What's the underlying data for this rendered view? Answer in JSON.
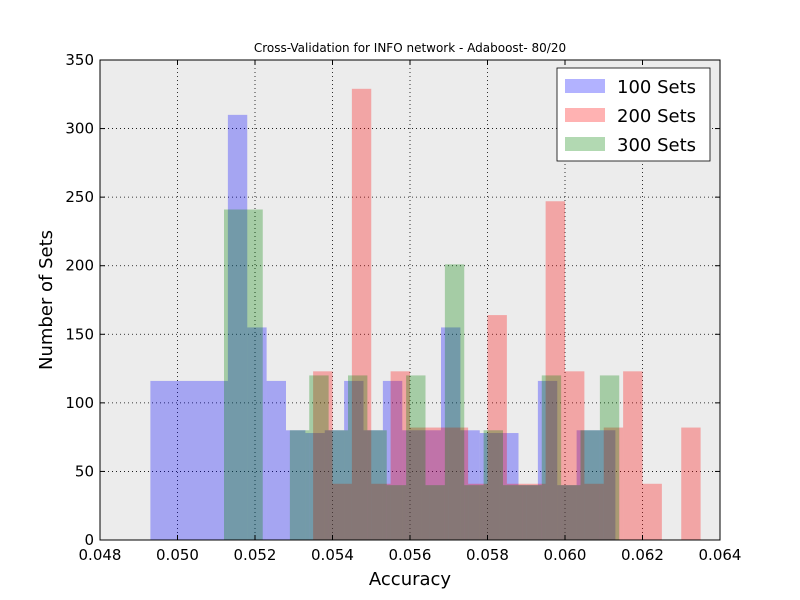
{
  "chart_data": {
    "type": "bar",
    "title": "Cross-Validation for INFO network - Adaboost- 80/20",
    "xlabel": "Accuracy",
    "ylabel": "Number of Sets",
    "xlim": [
      0.048,
      0.064
    ],
    "ylim": [
      0,
      350
    ],
    "xticks": [
      "0.048",
      "0.050",
      "0.052",
      "0.054",
      "0.056",
      "0.058",
      "0.060",
      "0.062",
      "0.064"
    ],
    "yticks": [
      "0",
      "50",
      "100",
      "150",
      "200",
      "250",
      "300",
      "350"
    ],
    "grid": true,
    "legend_position": "top-right",
    "background": "#ececec",
    "series": [
      {
        "name": "100 Sets",
        "color": "#0000ff",
        "opacity": 0.3,
        "bins": [
          {
            "x0": 0.0493,
            "x1": 0.0513,
            "y": 116
          },
          {
            "x0": 0.0513,
            "x1": 0.0518,
            "y": 310
          },
          {
            "x0": 0.0518,
            "x1": 0.0523,
            "y": 155
          },
          {
            "x0": 0.0523,
            "x1": 0.0528,
            "y": 116
          },
          {
            "x0": 0.0528,
            "x1": 0.0533,
            "y": 80
          },
          {
            "x0": 0.0533,
            "x1": 0.0538,
            "y": 78
          },
          {
            "x0": 0.0538,
            "x1": 0.0543,
            "y": 80
          },
          {
            "x0": 0.0543,
            "x1": 0.0548,
            "y": 116
          },
          {
            "x0": 0.0548,
            "x1": 0.0553,
            "y": 80
          },
          {
            "x0": 0.0553,
            "x1": 0.0558,
            "y": 116
          },
          {
            "x0": 0.0558,
            "x1": 0.0563,
            "y": 80
          },
          {
            "x0": 0.0563,
            "x1": 0.0568,
            "y": 80
          },
          {
            "x0": 0.0568,
            "x1": 0.0573,
            "y": 155
          },
          {
            "x0": 0.0573,
            "x1": 0.0578,
            "y": 80
          },
          {
            "x0": 0.0578,
            "x1": 0.0583,
            "y": 78
          },
          {
            "x0": 0.0583,
            "x1": 0.0588,
            "y": 78
          },
          {
            "x0": 0.0588,
            "x1": 0.0593,
            "y": 40
          },
          {
            "x0": 0.0593,
            "x1": 0.0598,
            "y": 116
          },
          {
            "x0": 0.0598,
            "x1": 0.0603,
            "y": 40
          },
          {
            "x0": 0.0603,
            "x1": 0.0608,
            "y": 80
          },
          {
            "x0": 0.0608,
            "x1": 0.0613,
            "y": 80
          }
        ]
      },
      {
        "name": "200 Sets",
        "color": "#ff0000",
        "opacity": 0.3,
        "bins": [
          {
            "x0": 0.0535,
            "x1": 0.054,
            "y": 123
          },
          {
            "x0": 0.054,
            "x1": 0.0545,
            "y": 41
          },
          {
            "x0": 0.0545,
            "x1": 0.055,
            "y": 329
          },
          {
            "x0": 0.055,
            "x1": 0.0555,
            "y": 41
          },
          {
            "x0": 0.0555,
            "x1": 0.056,
            "y": 123
          },
          {
            "x0": 0.056,
            "x1": 0.0565,
            "y": 82
          },
          {
            "x0": 0.0565,
            "x1": 0.057,
            "y": 82
          },
          {
            "x0": 0.057,
            "x1": 0.0575,
            "y": 82
          },
          {
            "x0": 0.0575,
            "x1": 0.058,
            "y": 41
          },
          {
            "x0": 0.058,
            "x1": 0.0585,
            "y": 164
          },
          {
            "x0": 0.0585,
            "x1": 0.059,
            "y": 41
          },
          {
            "x0": 0.059,
            "x1": 0.0595,
            "y": 41
          },
          {
            "x0": 0.0595,
            "x1": 0.06,
            "y": 247
          },
          {
            "x0": 0.06,
            "x1": 0.0605,
            "y": 123
          },
          {
            "x0": 0.0605,
            "x1": 0.061,
            "y": 41
          },
          {
            "x0": 0.061,
            "x1": 0.0615,
            "y": 82
          },
          {
            "x0": 0.0615,
            "x1": 0.062,
            "y": 123
          },
          {
            "x0": 0.062,
            "x1": 0.0625,
            "y": 41
          },
          {
            "x0": 0.0625,
            "x1": 0.063,
            "y": 0
          },
          {
            "x0": 0.063,
            "x1": 0.0635,
            "y": 82
          }
        ]
      },
      {
        "name": "300 Sets",
        "color": "#008000",
        "opacity": 0.3,
        "bins": [
          {
            "x0": 0.0512,
            "x1": 0.0522,
            "y": 241
          },
          {
            "x0": 0.0522,
            "x1": 0.0529,
            "y": 0
          },
          {
            "x0": 0.0529,
            "x1": 0.0534,
            "y": 80
          },
          {
            "x0": 0.0534,
            "x1": 0.0539,
            "y": 120
          },
          {
            "x0": 0.0539,
            "x1": 0.0544,
            "y": 80
          },
          {
            "x0": 0.0544,
            "x1": 0.0549,
            "y": 120
          },
          {
            "x0": 0.0549,
            "x1": 0.0554,
            "y": 80
          },
          {
            "x0": 0.0554,
            "x1": 0.0559,
            "y": 40
          },
          {
            "x0": 0.0559,
            "x1": 0.0564,
            "y": 120
          },
          {
            "x0": 0.0564,
            "x1": 0.0569,
            "y": 40
          },
          {
            "x0": 0.0569,
            "x1": 0.0574,
            "y": 201
          },
          {
            "x0": 0.0574,
            "x1": 0.0579,
            "y": 40
          },
          {
            "x0": 0.0579,
            "x1": 0.0584,
            "y": 80
          },
          {
            "x0": 0.0584,
            "x1": 0.0589,
            "y": 40
          },
          {
            "x0": 0.0589,
            "x1": 0.0594,
            "y": 40
          },
          {
            "x0": 0.0594,
            "x1": 0.0599,
            "y": 120
          },
          {
            "x0": 0.0599,
            "x1": 0.0604,
            "y": 40
          },
          {
            "x0": 0.0604,
            "x1": 0.0609,
            "y": 80
          },
          {
            "x0": 0.0609,
            "x1": 0.0614,
            "y": 120
          }
        ]
      }
    ]
  }
}
